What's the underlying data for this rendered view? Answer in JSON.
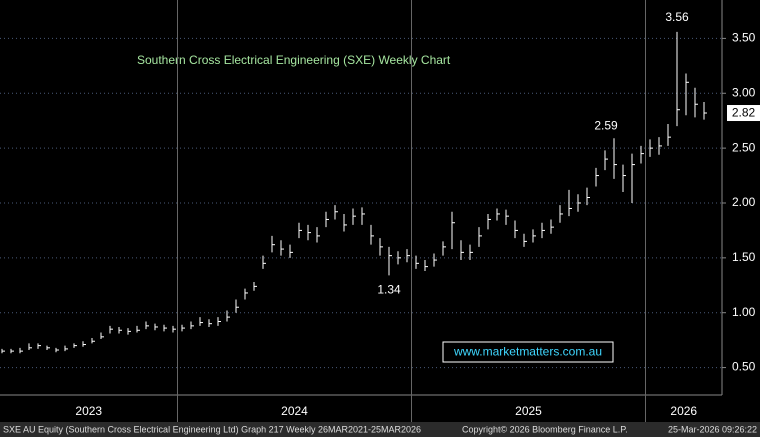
{
  "chart_data": {
    "type": "ohlc",
    "title": "Southern Cross Electrical Engineering (SXE) Weekly Chart",
    "watermark": "www.marketmatters.com.au",
    "footer_left": "SXE AU Equity (Southern Cross Electrical Engineering Ltd) Graph 217 Weekly 26MAR2021-25MAR2026",
    "footer_mid": "Copyright© 2026 Bloomberg Finance L.P.",
    "footer_right": "25-Mar-2026 09:26:22",
    "categories": [
      "2023",
      null,
      null,
      null,
      null,
      null,
      null,
      null,
      null,
      null,
      null,
      null,
      null,
      null,
      null,
      null,
      null,
      null,
      null,
      null,
      "2024",
      null,
      null,
      null,
      null,
      null,
      null,
      null,
      null,
      null,
      null,
      null,
      null,
      null,
      null,
      null,
      null,
      null,
      null,
      null,
      null,
      null,
      null,
      null,
      null,
      null,
      "2025",
      null,
      null,
      null,
      null,
      null,
      null,
      null,
      null,
      null,
      null,
      null,
      null,
      null,
      null,
      null,
      null,
      null,
      null,
      null,
      null,
      null,
      null,
      null,
      null,
      null,
      "2026",
      null,
      null,
      null,
      null,
      null,
      null
    ],
    "close": [
      0.65,
      0.65,
      0.65,
      0.68,
      0.7,
      0.68,
      0.66,
      0.67,
      0.7,
      0.71,
      0.74,
      0.78,
      0.85,
      0.84,
      0.83,
      0.84,
      0.88,
      0.87,
      0.86,
      0.85,
      0.86,
      0.88,
      0.91,
      0.9,
      0.92,
      0.96,
      1.05,
      1.18,
      1.24,
      1.45,
      1.62,
      1.58,
      1.55,
      1.75,
      1.73,
      1.7,
      1.85,
      1.92,
      1.8,
      1.88,
      1.9,
      1.7,
      1.6,
      1.52,
      1.5,
      1.52,
      1.45,
      1.42,
      1.48,
      1.6,
      1.82,
      1.55,
      1.55,
      1.7,
      1.85,
      1.9,
      1.88,
      1.75,
      1.65,
      1.7,
      1.75,
      1.78,
      1.9,
      1.95,
      2.0,
      2.05,
      2.25,
      2.4,
      2.35,
      2.25,
      2.35,
      2.45,
      2.5,
      2.52,
      2.6,
      2.85,
      3.1,
      2.9,
      2.82
    ],
    "high": [
      0.67,
      0.67,
      0.68,
      0.72,
      0.72,
      0.7,
      0.68,
      0.7,
      0.72,
      0.74,
      0.77,
      0.82,
      0.88,
      0.87,
      0.86,
      0.88,
      0.92,
      0.9,
      0.89,
      0.88,
      0.89,
      0.92,
      0.96,
      0.94,
      0.96,
      1.02,
      1.12,
      1.22,
      1.28,
      1.52,
      1.7,
      1.66,
      1.62,
      1.82,
      1.8,
      1.78,
      1.92,
      1.98,
      1.9,
      1.95,
      1.96,
      1.8,
      1.68,
      1.6,
      1.56,
      1.58,
      1.52,
      1.48,
      1.54,
      1.65,
      1.92,
      1.66,
      1.62,
      1.78,
      1.9,
      1.95,
      1.94,
      1.84,
      1.72,
      1.76,
      1.82,
      1.85,
      1.98,
      2.12,
      2.08,
      2.14,
      2.32,
      2.48,
      2.59,
      2.35,
      2.45,
      2.52,
      2.58,
      2.6,
      2.72,
      3.56,
      3.18,
      3.05,
      2.92
    ],
    "low": [
      0.63,
      0.63,
      0.63,
      0.66,
      0.67,
      0.66,
      0.64,
      0.65,
      0.68,
      0.69,
      0.72,
      0.76,
      0.81,
      0.81,
      0.8,
      0.82,
      0.85,
      0.84,
      0.83,
      0.82,
      0.83,
      0.85,
      0.88,
      0.87,
      0.88,
      0.92,
      1.0,
      1.12,
      1.2,
      1.4,
      1.55,
      1.52,
      1.5,
      1.68,
      1.66,
      1.64,
      1.78,
      1.85,
      1.74,
      1.8,
      1.8,
      1.62,
      1.52,
      1.34,
      1.44,
      1.46,
      1.4,
      1.38,
      1.42,
      1.52,
      1.58,
      1.48,
      1.48,
      1.6,
      1.76,
      1.84,
      1.8,
      1.68,
      1.6,
      1.64,
      1.68,
      1.72,
      1.82,
      1.88,
      1.92,
      1.98,
      2.15,
      2.3,
      2.22,
      2.1,
      2.0,
      2.36,
      2.42,
      2.44,
      2.52,
      2.7,
      2.8,
      2.78,
      2.76
    ],
    "color": "#ffffff",
    "ylim": [
      0.25,
      3.85
    ],
    "yticks": [
      {
        "value": 0.5,
        "label": "0.50"
      },
      {
        "value": 1,
        "label": "1.00"
      },
      {
        "value": 1.5,
        "label": "1.50"
      },
      {
        "value": 2,
        "label": "2.00"
      },
      {
        "value": 2.5,
        "label": "2.50"
      },
      {
        "value": 3,
        "label": "3.00"
      },
      {
        "value": 3.5,
        "label": "3.50"
      }
    ],
    "grid": true
  }
}
